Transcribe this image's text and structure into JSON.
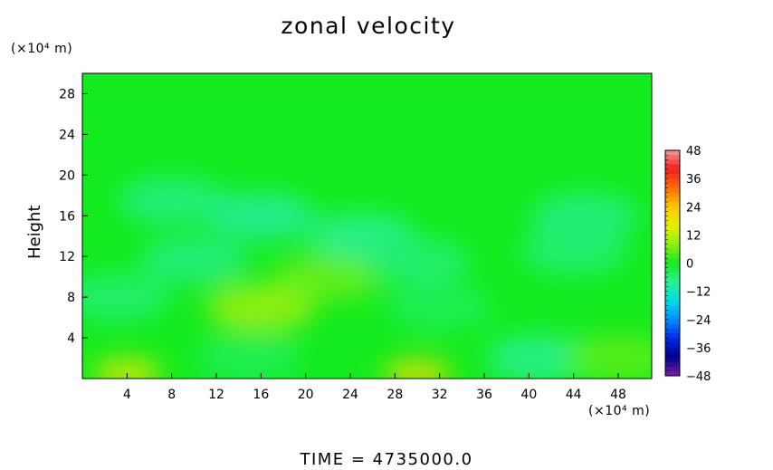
{
  "chart_data": {
    "type": "heatmap",
    "title": "zonal velocity",
    "ylabel": "Height",
    "xunit": "(×10⁴ m)",
    "yunit": "(×10⁴ m)",
    "footer": "TIME = 4735000.0",
    "xlim": [
      0,
      51
    ],
    "ylim": [
      0,
      30
    ],
    "xticks": [
      "4",
      "8",
      "12",
      "16",
      "20",
      "24",
      "28",
      "32",
      "36",
      "40",
      "44",
      "48"
    ],
    "xtick_values": [
      4,
      8,
      12,
      16,
      20,
      24,
      28,
      32,
      36,
      40,
      44,
      48
    ],
    "yticks": [
      "4",
      "8",
      "12",
      "16",
      "20",
      "24",
      "28"
    ],
    "ytick_values": [
      4,
      8,
      12,
      16,
      20,
      24,
      28
    ],
    "colorbar": {
      "labels": [
        "48",
        "36",
        "24",
        "12",
        "0",
        "−12",
        "−24",
        "−36",
        "−48"
      ],
      "values": [
        48,
        36,
        24,
        12,
        0,
        -12,
        -24,
        -36,
        -48
      ],
      "range": [
        -48,
        48
      ]
    },
    "field_features": [
      {
        "x": 4,
        "y": 0.5,
        "value": 18
      },
      {
        "x": 30,
        "y": 0.4,
        "value": 20
      },
      {
        "x": 16,
        "y": 7,
        "value": 10
      },
      {
        "x": 22,
        "y": 10,
        "value": 6
      },
      {
        "x": 3,
        "y": 8,
        "value": -6
      },
      {
        "x": 32,
        "y": 7,
        "value": -4
      },
      {
        "x": 41,
        "y": 2,
        "value": -8
      },
      {
        "x": 15,
        "y": 2,
        "value": -4
      },
      {
        "x": 25,
        "y": 14,
        "value": -8
      },
      {
        "x": 8,
        "y": 17.5,
        "value": -7
      },
      {
        "x": 16,
        "y": 16,
        "value": -9
      },
      {
        "x": 45,
        "y": 16,
        "value": -7
      },
      {
        "x": 30,
        "y": 11.5,
        "value": -6
      },
      {
        "x": 10,
        "y": 11.7,
        "value": -7
      },
      {
        "x": 44,
        "y": 12.5,
        "value": -6
      },
      {
        "x": 48,
        "y": 2,
        "value": 5
      }
    ],
    "background_value": 0
  }
}
